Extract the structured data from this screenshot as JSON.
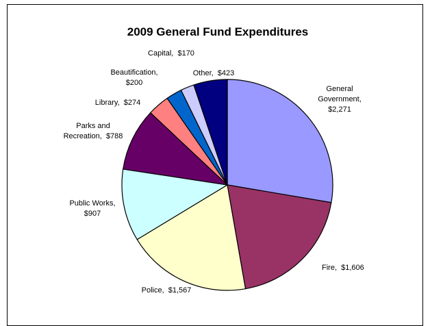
{
  "chart_data": {
    "type": "pie",
    "title": "2009 General Fund Expenditures",
    "slices": [
      {
        "name": "General Government",
        "value": 2271,
        "color": "#9999ff",
        "label_lines": [
          "General",
          "Government,",
          "$2,271"
        ]
      },
      {
        "name": "Fire",
        "value": 1606,
        "color": "#993366",
        "label_lines": [
          "Fire,  $1,606"
        ]
      },
      {
        "name": "Police",
        "value": 1567,
        "color": "#ffffcc",
        "label_lines": [
          "Police,  $1,567"
        ]
      },
      {
        "name": "Public Works",
        "value": 907,
        "color": "#ccffff",
        "label_lines": [
          "Public Works,",
          "$907"
        ]
      },
      {
        "name": "Parks and Recreation",
        "value": 788,
        "color": "#660066",
        "label_lines": [
          "Parks and",
          "Recreation,  $788"
        ]
      },
      {
        "name": "Library",
        "value": 274,
        "color": "#ff8080",
        "label_lines": [
          "Library,  $274"
        ]
      },
      {
        "name": "Beautification",
        "value": 200,
        "color": "#0066cc",
        "label_lines": [
          "Beautification,",
          "$200"
        ]
      },
      {
        "name": "Capital",
        "value": 170,
        "color": "#ccccff",
        "label_lines": [
          "Capital,  $170"
        ]
      },
      {
        "name": "Other",
        "value": 423,
        "color": "#000080",
        "label_lines": [
          "Other,  $423"
        ]
      }
    ]
  }
}
